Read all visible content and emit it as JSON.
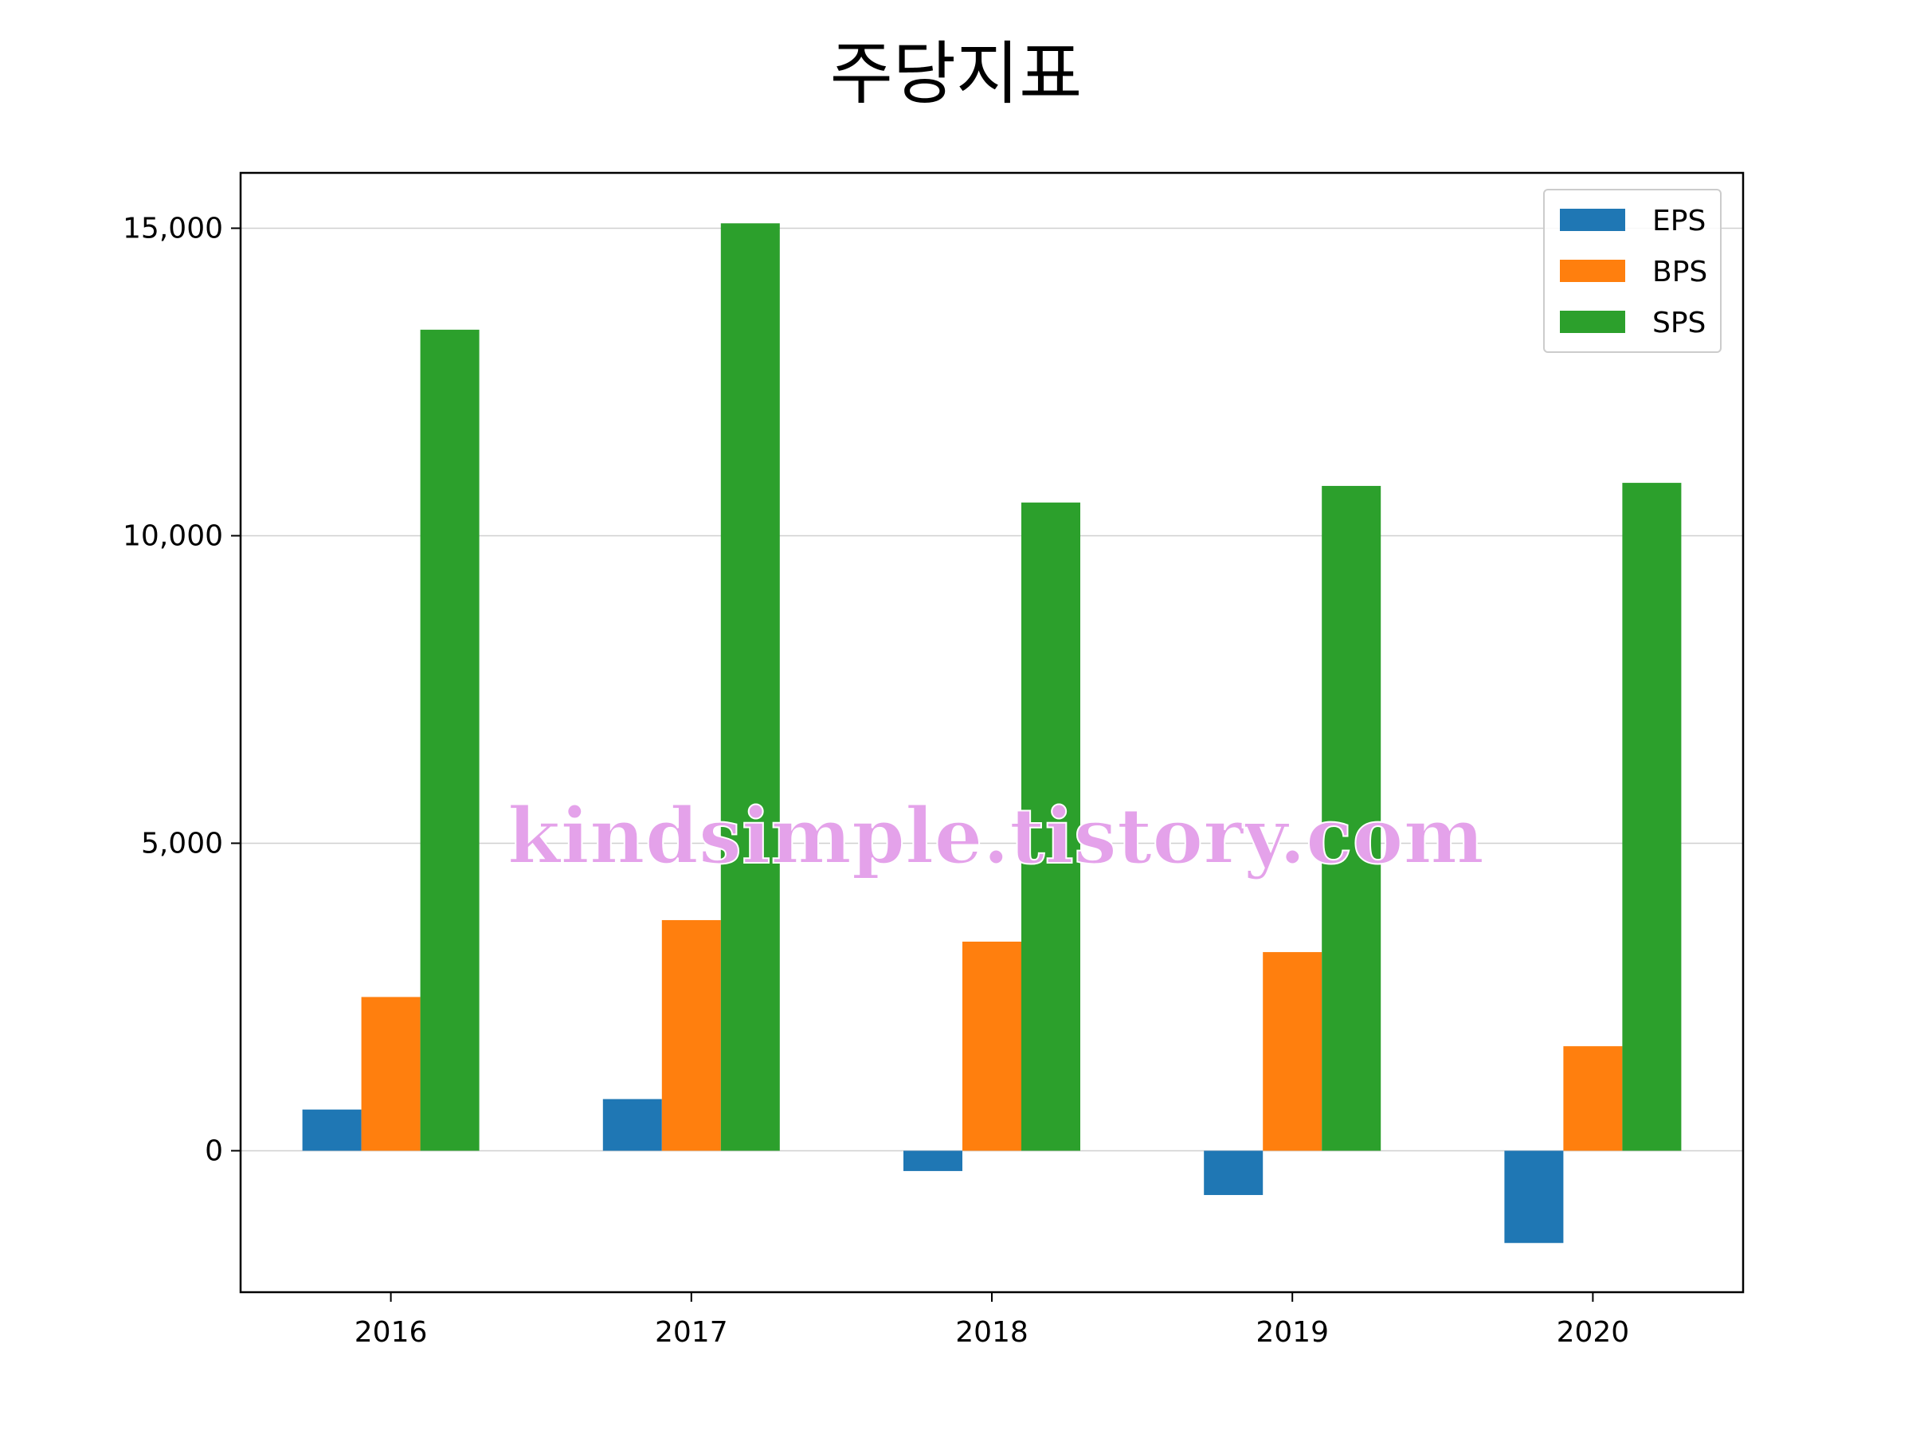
{
  "chart_data": {
    "type": "bar",
    "title": "주당지표",
    "categories": [
      "2016",
      "2017",
      "2018",
      "2019",
      "2020"
    ],
    "series": [
      {
        "name": "EPS",
        "color": "#1f77b4",
        "values": [
          670,
          840,
          -330,
          -720,
          -1500
        ]
      },
      {
        "name": "BPS",
        "color": "#ff7f0e",
        "values": [
          2500,
          3750,
          3400,
          3230,
          1700
        ]
      },
      {
        "name": "SPS",
        "color": "#2ca02c",
        "values": [
          13350,
          15080,
          10540,
          10810,
          10860
        ]
      }
    ],
    "yticks": [
      0,
      5000,
      10000,
      15000
    ],
    "ytick_labels": [
      "0",
      "5,000",
      "10,000",
      "15,000"
    ],
    "ylim": [
      -2300,
      15900
    ],
    "grid": "horizontal",
    "legend_position": "top-right"
  },
  "watermark": "kindsimple.tistory.com"
}
